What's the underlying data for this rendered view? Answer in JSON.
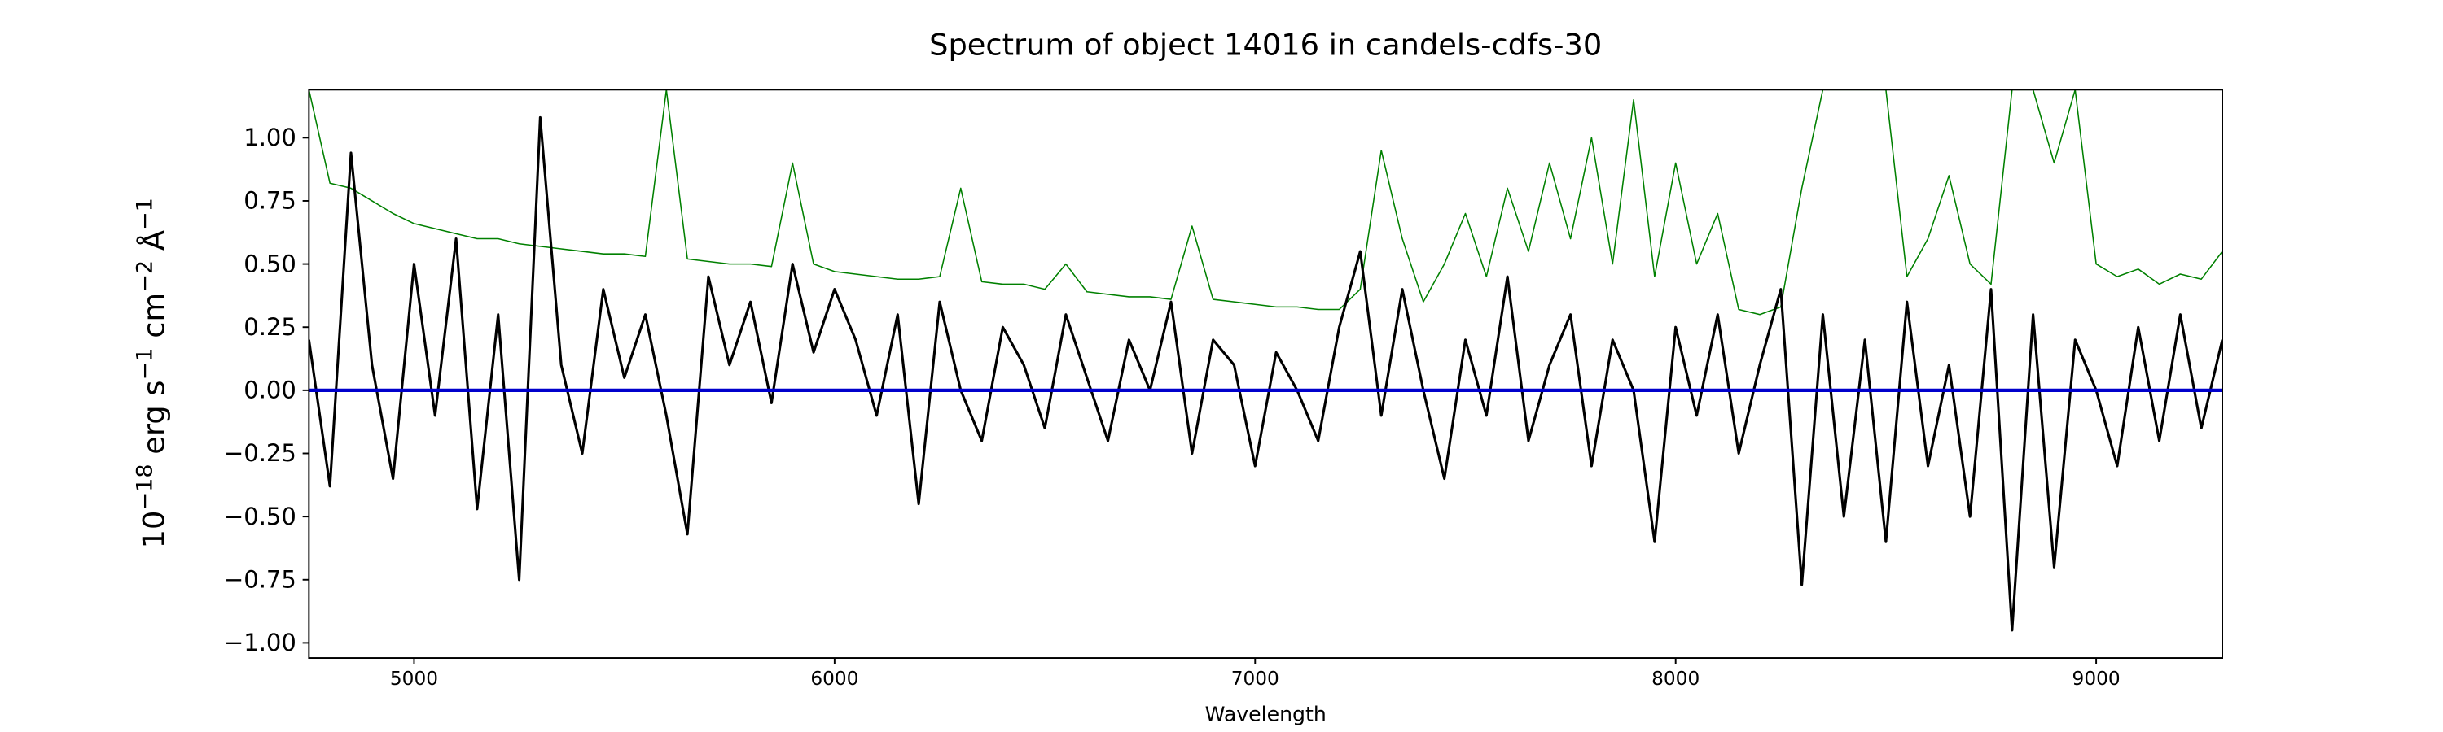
{
  "chart_data": {
    "type": "line",
    "title": "Spectrum of object 14016 in candels-cdfs-30",
    "x_label": "Wavelength",
    "y_label": [
      "10",
      "−18",
      " erg s",
      "−1",
      " cm",
      "−2",
      " Å",
      "−1"
    ],
    "xlim": [
      4750,
      9300
    ],
    "ylim": [
      -1.06,
      1.19
    ],
    "xticks": [
      5000,
      6000,
      7000,
      8000,
      9000
    ],
    "yticks": [
      {
        "value": 1.0,
        "label": "1.00"
      },
      {
        "value": 0.75,
        "label": "0.75"
      },
      {
        "value": 0.5,
        "label": "0.50"
      },
      {
        "value": 0.25,
        "label": "0.25"
      },
      {
        "value": 0.0,
        "label": "0.00"
      },
      {
        "value": -0.25,
        "label": "−0.25"
      },
      {
        "value": -0.5,
        "label": "−0.50"
      },
      {
        "value": -0.75,
        "label": "−0.75"
      },
      {
        "value": -1.0,
        "label": "−1.00"
      }
    ],
    "x": [
      4750,
      4800,
      4850,
      4900,
      4950,
      5000,
      5050,
      5100,
      5150,
      5200,
      5250,
      5300,
      5350,
      5400,
      5450,
      5500,
      5550,
      5600,
      5650,
      5700,
      5750,
      5800,
      5850,
      5900,
      5950,
      6000,
      6050,
      6100,
      6150,
      6200,
      6250,
      6300,
      6350,
      6400,
      6450,
      6500,
      6550,
      6600,
      6650,
      6700,
      6750,
      6800,
      6850,
      6900,
      6950,
      7000,
      7050,
      7100,
      7150,
      7200,
      7250,
      7300,
      7350,
      7400,
      7450,
      7500,
      7550,
      7600,
      7650,
      7700,
      7750,
      7800,
      7850,
      7900,
      7950,
      8000,
      8050,
      8100,
      8150,
      8200,
      8250,
      8300,
      8350,
      8400,
      8450,
      8500,
      8550,
      8600,
      8650,
      8700,
      8750,
      8800,
      8850,
      8900,
      8950,
      9000,
      9050,
      9100,
      9150,
      9200,
      9250,
      9300
    ],
    "series": [
      {
        "color": "#008000",
        "width": 0.8,
        "values": [
          1.19,
          0.82,
          0.8,
          0.75,
          0.7,
          0.66,
          0.64,
          0.62,
          0.6,
          0.6,
          0.58,
          0.57,
          0.56,
          0.55,
          0.54,
          0.54,
          0.53,
          1.19,
          0.52,
          0.51,
          0.5,
          0.5,
          0.49,
          0.9,
          0.5,
          0.47,
          0.46,
          0.45,
          0.44,
          0.44,
          0.45,
          0.8,
          0.43,
          0.42,
          0.42,
          0.4,
          0.5,
          0.39,
          0.38,
          0.37,
          0.37,
          0.36,
          0.65,
          0.36,
          0.35,
          0.34,
          0.33,
          0.33,
          0.32,
          0.32,
          0.4,
          0.95,
          0.6,
          0.35,
          0.5,
          0.7,
          0.45,
          0.8,
          0.55,
          0.9,
          0.6,
          1.0,
          0.5,
          1.15,
          0.45,
          0.9,
          0.5,
          0.7,
          0.32,
          0.3,
          0.33,
          0.8,
          1.19,
          1.19,
          1.19,
          1.19,
          0.45,
          0.6,
          0.85,
          0.5,
          0.42,
          1.19,
          1.19,
          0.9,
          1.19,
          0.5,
          0.45,
          0.48,
          0.42,
          0.46,
          0.44,
          0.55
        ]
      },
      {
        "color": "#000000",
        "width": 1.6,
        "values": [
          0.2,
          -0.38,
          0.94,
          0.1,
          -0.35,
          0.5,
          -0.1,
          0.6,
          -0.47,
          0.3,
          -0.75,
          1.08,
          0.1,
          -0.25,
          0.4,
          0.05,
          0.3,
          -0.1,
          -0.57,
          0.45,
          0.1,
          0.35,
          -0.05,
          0.5,
          0.15,
          0.4,
          0.2,
          -0.1,
          0.3,
          -0.45,
          0.35,
          0.0,
          -0.2,
          0.25,
          0.1,
          -0.15,
          0.3,
          0.05,
          -0.2,
          0.2,
          0.0,
          0.35,
          -0.25,
          0.2,
          0.1,
          -0.3,
          0.15,
          0.0,
          -0.2,
          0.25,
          0.55,
          -0.1,
          0.4,
          0.0,
          -0.35,
          0.2,
          -0.1,
          0.45,
          -0.2,
          0.1,
          0.3,
          -0.3,
          0.2,
          0.0,
          -0.6,
          0.25,
          -0.1,
          0.3,
          -0.25,
          0.1,
          0.4,
          -0.77,
          0.3,
          -0.5,
          0.2,
          -0.6,
          0.35,
          -0.3,
          0.1,
          -0.5,
          0.4,
          -0.95,
          0.3,
          -0.7,
          0.2,
          0.0,
          -0.3,
          0.25,
          -0.2,
          0.3,
          -0.15,
          0.2
        ]
      },
      {
        "color": "#0000cc",
        "width": 2.2,
        "x": [
          4750,
          9300
        ],
        "values": [
          0.0,
          0.0
        ]
      }
    ]
  }
}
